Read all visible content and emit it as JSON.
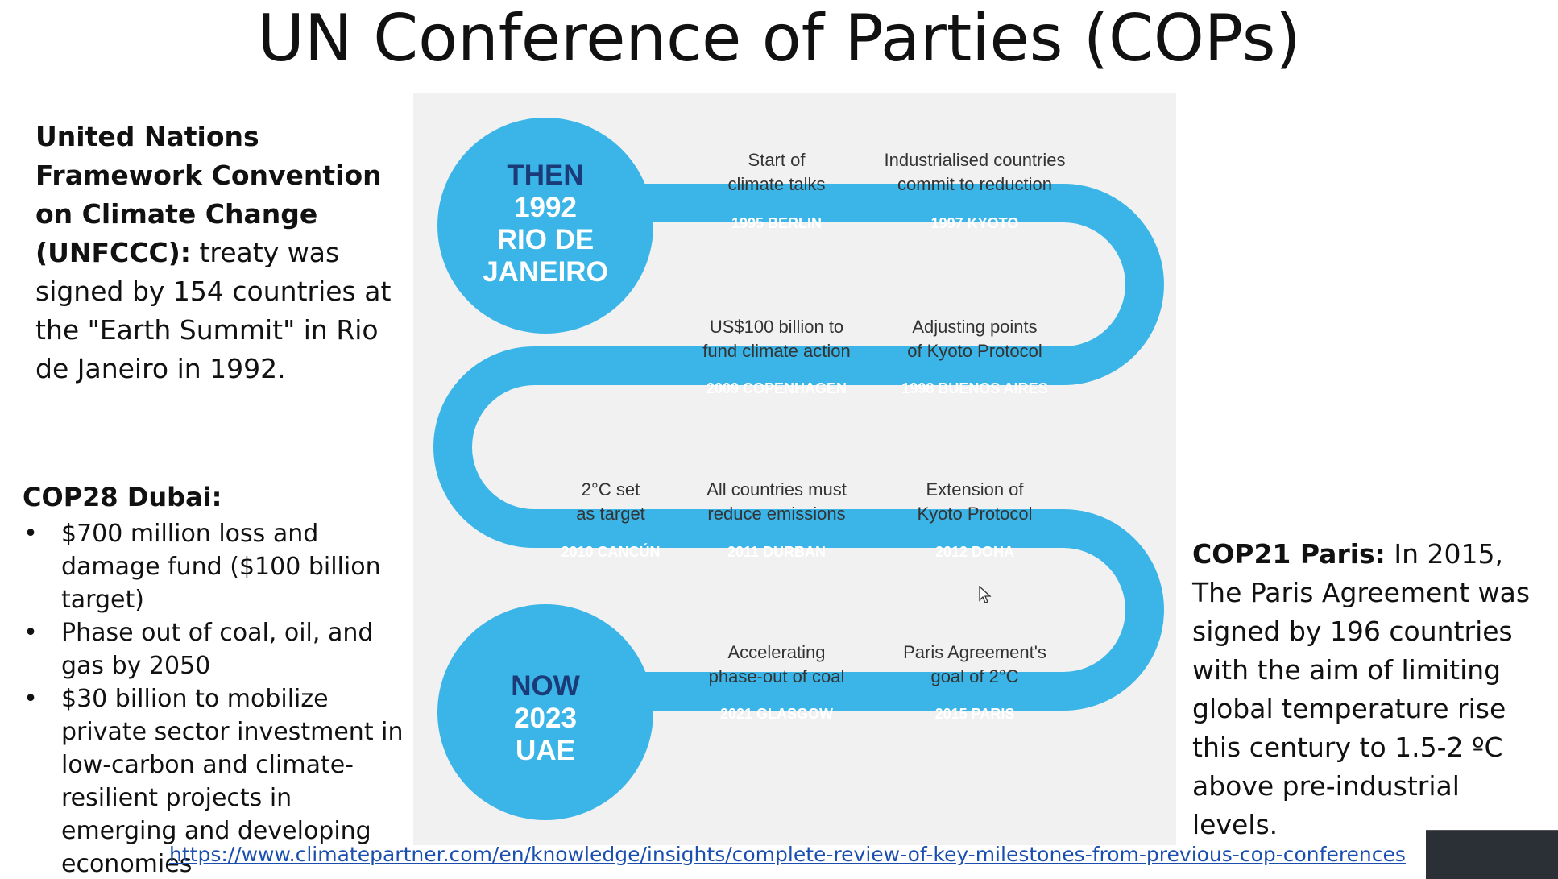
{
  "title": "UN Conference of Parties (COPs)",
  "unfccc": {
    "bold": "United Nations Framework Convention on Climate Change (UNFCCC):",
    "text": " treaty was signed by 154 countries at the \"Earth Summit\" in Rio de Janeiro in 1992."
  },
  "cop28": {
    "heading": "COP28 Dubai:",
    "bullets": [
      "$700 million loss and damage fund ($100 billion target)",
      "Phase out of coal, oil, and gas by 2050",
      "$30 billion to mobilize private sector investment in low-carbon and climate-resilient projects in emerging and developing economies"
    ]
  },
  "cop21": {
    "bold": "COP21 Paris:",
    "text": " In 2015, The Paris Agreement was signed by 196 countries with the aim of limiting global temperature rise this century to 1.5-2 ºC above pre-industrial levels."
  },
  "infographic": {
    "colors": {
      "path": "#3bb5e8",
      "background": "#f1f1f1",
      "circle_text": "#1b3a78",
      "label": "#333333"
    },
    "then_circle": [
      "THEN",
      "1992",
      "RIO DE",
      "JANEIRO"
    ],
    "now_circle": [
      "NOW",
      "2023",
      "UAE"
    ],
    "milestones": [
      {
        "event": "1995 BERLIN",
        "desc": [
          "Start of",
          "climate talks"
        ]
      },
      {
        "event": "1997 KYOTO",
        "desc": [
          "Industrialised countries",
          "commit to reduction"
        ]
      },
      {
        "event": "2009 COPENHAGEN",
        "desc": [
          "US$100 billion to",
          "fund climate action"
        ]
      },
      {
        "event": "1998 BUENOS AIRES",
        "desc": [
          "Adjusting points",
          "of Kyoto Protocol"
        ]
      },
      {
        "event": "2010 CANCÚN",
        "desc": [
          "2°C set",
          "as target"
        ]
      },
      {
        "event": "2011 DURBAN",
        "desc": [
          "All countries must",
          "reduce emissions"
        ]
      },
      {
        "event": "2012 DOHA",
        "desc": [
          "Extension of",
          "Kyoto Protocol"
        ]
      },
      {
        "event": "2021 GLASGOW",
        "desc": [
          "Accelerating",
          "phase-out of coal"
        ]
      },
      {
        "event": "2015 PARIS",
        "desc": [
          "Paris Agreement's",
          "goal of 2°C"
        ]
      }
    ]
  },
  "source_link": "https://www.climatepartner.com/en/knowledge/insights/complete-review-of-key-milestones-from-previous-cop-conferences"
}
